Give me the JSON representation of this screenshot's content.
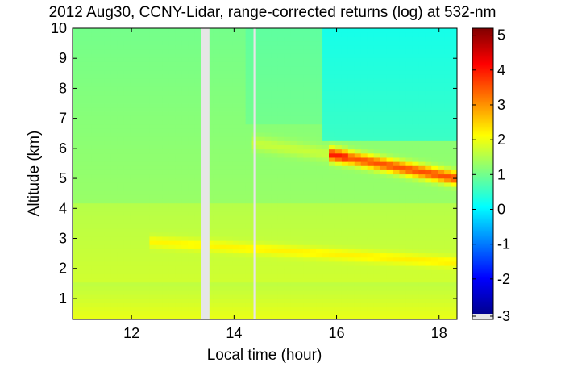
{
  "chart_data": {
    "type": "heatmap",
    "title": "2012 Aug30, CCNY-Lidar, range-corrected returns (log) at 532-nm",
    "xlabel": "Local time (hour)",
    "ylabel": "Altitude (km)",
    "xlim": [
      10.85,
      18.35
    ],
    "ylim": [
      0.3,
      10
    ],
    "xticks": [
      12,
      14,
      16,
      18
    ],
    "yticks": [
      1,
      2,
      3,
      4,
      5,
      6,
      7,
      8,
      9,
      10
    ],
    "colorbar": {
      "range": [
        -3,
        5.2
      ],
      "ticks": [
        -3,
        -2,
        -1,
        0,
        1,
        2,
        3,
        4,
        5
      ],
      "colormap": "jet",
      "missing_color": "#e6e6e6"
    },
    "data_gaps": [
      [
        13.35,
        13.52
      ],
      [
        14.38,
        14.43
      ]
    ],
    "features": [
      {
        "name": "thin cloud layer",
        "time_start": 15.9,
        "time_end": 18.35,
        "altitude_start_km": 5.8,
        "altitude_end_km": 5.0,
        "value": 3.5
      },
      {
        "name": "aerosol layer",
        "time_start": 12.3,
        "time_end": 18.35,
        "altitude_start_km": 2.9,
        "altitude_end_km": 2.2,
        "value": 2.3
      },
      {
        "name": "boundary layer",
        "time_start": 10.85,
        "time_end": 18.35,
        "altitude_start_km": 0.3,
        "altitude_end_km": 1.5,
        "value": 2.0
      }
    ]
  }
}
